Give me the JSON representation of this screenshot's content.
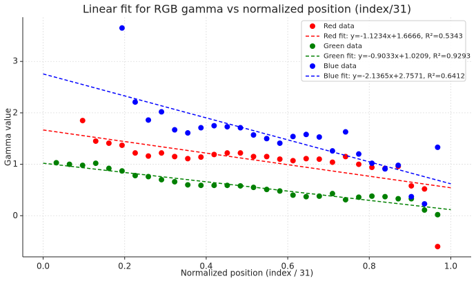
{
  "chart_data": {
    "type": "scatter",
    "title": "Linear fit for RGB gamma vs normalized position (index/31)",
    "xlabel": "Normalized position (index / 31)",
    "ylabel": "Gamma value",
    "xlim": [
      -0.05,
      1.05
    ],
    "ylim": [
      -0.8,
      3.86
    ],
    "xticks": [
      {
        "value": 0,
        "label": "0.0"
      },
      0.2,
      0.4,
      0.6,
      0.8,
      {
        "value": 1,
        "label": "1.0"
      }
    ],
    "yticks": [
      0,
      1,
      2,
      3
    ],
    "grid": true,
    "legend": "upper right",
    "series": [
      {
        "name": "Red data",
        "color": "#ff0000",
        "style": "points",
        "x": [
          0.0968,
          0.129,
          0.1613,
          0.1935,
          0.2258,
          0.2581,
          0.2903,
          0.3226,
          0.3548,
          0.3871,
          0.4194,
          0.4516,
          0.4839,
          0.5161,
          0.5484,
          0.5806,
          0.6129,
          0.6452,
          0.6774,
          0.7097,
          0.7419,
          0.7742,
          0.8065,
          0.8387,
          0.871,
          0.9032,
          0.9355,
          0.9677
        ],
        "values": [
          1.85,
          1.45,
          1.41,
          1.37,
          1.22,
          1.16,
          1.22,
          1.15,
          1.11,
          1.14,
          1.19,
          1.22,
          1.22,
          1.15,
          1.15,
          1.1,
          1.07,
          1.11,
          1.1,
          1.04,
          1.15,
          1.0,
          0.94,
          0.92,
          0.96,
          0.58,
          0.52,
          -0.6
        ]
      },
      {
        "name": "Red fit: y=-1.1234x+1.6666, R²=0.5343",
        "color": "#ff0000",
        "style": "dashed",
        "x": [
          0,
          1
        ],
        "values": [
          1.6666,
          0.5432
        ]
      },
      {
        "name": "Green data",
        "color": "#008000",
        "style": "points",
        "x": [
          0.0323,
          0.0645,
          0.0968,
          0.129,
          0.1613,
          0.1935,
          0.2258,
          0.2581,
          0.2903,
          0.3226,
          0.3548,
          0.3871,
          0.4194,
          0.4516,
          0.4839,
          0.5161,
          0.5484,
          0.5806,
          0.6129,
          0.6452,
          0.6774,
          0.7097,
          0.7419,
          0.7742,
          0.8065,
          0.8387,
          0.871,
          0.9032,
          0.9355,
          0.9677
        ],
        "values": [
          1.03,
          1.0,
          0.98,
          1.02,
          0.92,
          0.87,
          0.78,
          0.76,
          0.7,
          0.66,
          0.6,
          0.59,
          0.59,
          0.59,
          0.58,
          0.55,
          0.51,
          0.48,
          0.4,
          0.37,
          0.38,
          0.43,
          0.31,
          0.36,
          0.38,
          0.37,
          0.33,
          0.33,
          0.11,
          0.02
        ]
      },
      {
        "name": "Green fit: y=-0.9033x+1.0209, R²=0.9293",
        "color": "#008000",
        "style": "dashed",
        "x": [
          0,
          1
        ],
        "values": [
          1.0209,
          0.1176
        ]
      },
      {
        "name": "Blue data",
        "color": "#0000ff",
        "style": "points",
        "x": [
          0.1935,
          0.2258,
          0.2581,
          0.2903,
          0.3226,
          0.3548,
          0.3871,
          0.4194,
          0.4516,
          0.4839,
          0.5161,
          0.5484,
          0.5806,
          0.6129,
          0.6452,
          0.6774,
          0.7097,
          0.7419,
          0.7742,
          0.8065,
          0.8387,
          0.871,
          0.9032,
          0.9355,
          0.9677
        ],
        "values": [
          3.65,
          2.21,
          1.86,
          2.02,
          1.67,
          1.61,
          1.71,
          1.75,
          1.73,
          1.71,
          1.57,
          1.5,
          1.41,
          1.54,
          1.58,
          1.53,
          1.26,
          1.63,
          1.2,
          1.02,
          0.91,
          0.98,
          0.37,
          0.23,
          1.33
        ]
      },
      {
        "name": "Blue fit: y=-2.1365x+2.7571, R²=0.6412",
        "color": "#0000ff",
        "style": "dashed",
        "x": [
          0,
          1
        ],
        "values": [
          2.7571,
          0.6206
        ]
      }
    ]
  }
}
